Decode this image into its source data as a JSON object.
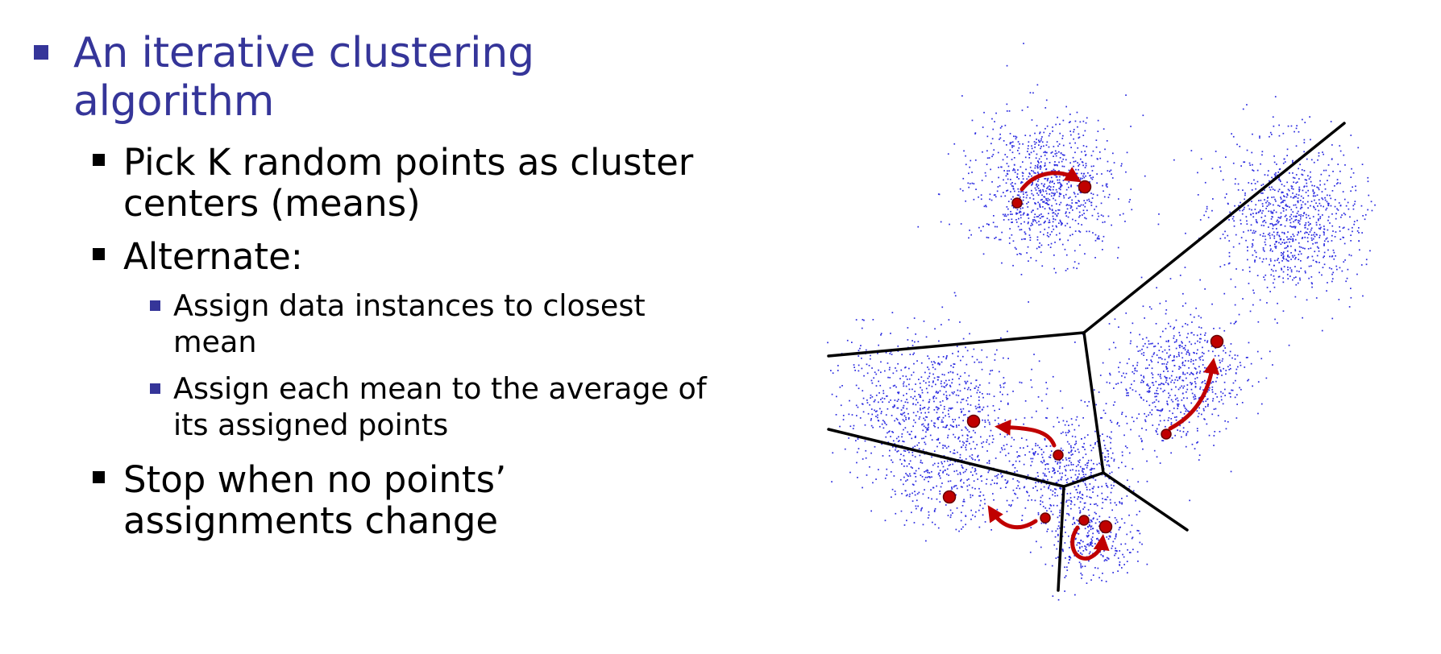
{
  "slide": {
    "heading": {
      "line1": "An iterative clustering",
      "line2": "algorithm"
    },
    "bullets": [
      {
        "line1": "Pick K random points as cluster",
        "line2": "centers (means)"
      },
      {
        "line1": "Alternate:"
      },
      {
        "line1": "Stop when no points’",
        "line2": "assignments change"
      }
    ],
    "sub_bullets": [
      {
        "line1": "Assign data instances to closest",
        "line2": "mean"
      },
      {
        "line1": "Assign each mean to the average of",
        "line2": "its assigned points"
      }
    ]
  },
  "figure": {
    "colors": {
      "points": "#2a2ae0",
      "centers": "#c00000",
      "arrows": "#c00000",
      "boundaries": "#000000",
      "heading": "#353599",
      "sub_bullet": "#353599"
    }
  }
}
